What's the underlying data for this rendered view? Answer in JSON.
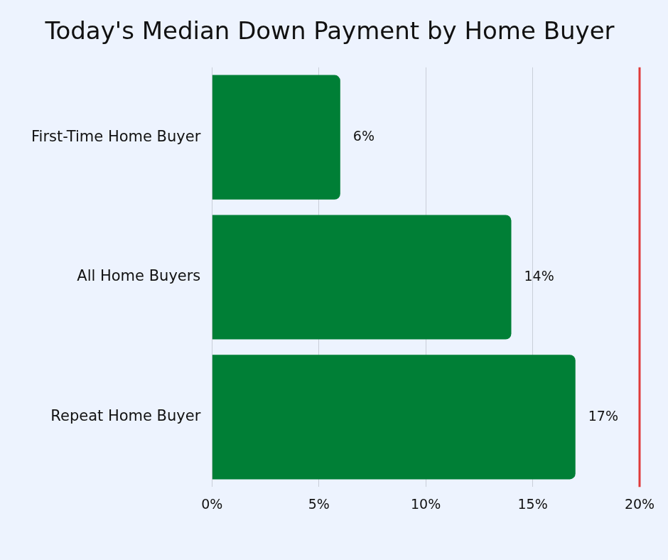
{
  "chart_data": {
    "type": "bar",
    "title": "Today's Median Down Payment by Home Buyer",
    "orientation": "horizontal",
    "categories": [
      "First-Time Home Buyer",
      "All Home Buyers",
      "Repeat Home Buyer"
    ],
    "values": [
      6,
      14,
      17
    ],
    "value_labels": [
      "6%",
      "14%",
      "17%"
    ],
    "data_labels": true,
    "color": "#007f36",
    "xlim": [
      0,
      20
    ],
    "xticks": [
      {
        "value": 0,
        "label": "0%"
      },
      {
        "value": 5,
        "label": "5%"
      },
      {
        "value": 10,
        "label": "10%"
      },
      {
        "value": 15,
        "label": "15%"
      },
      {
        "value": 20,
        "label": "20%"
      }
    ],
    "grid": true,
    "reference_line": 20
  }
}
